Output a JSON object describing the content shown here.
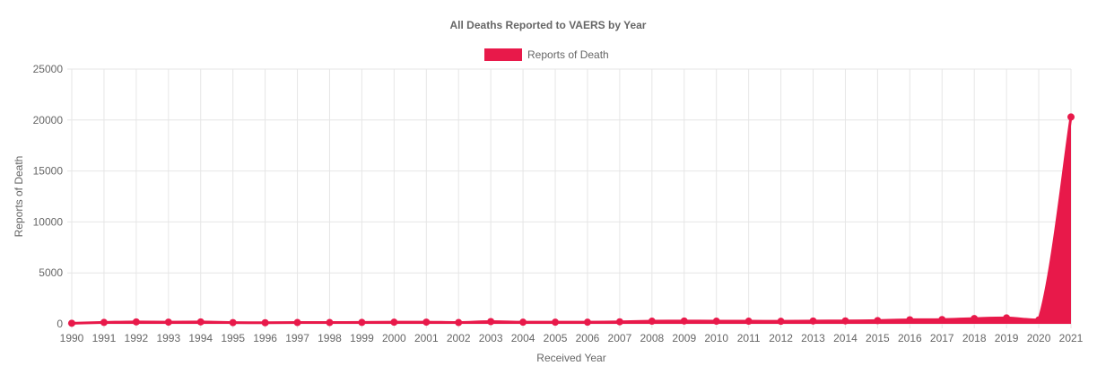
{
  "chart_data": {
    "type": "area",
    "title": "All Deaths Reported to VAERS by Year",
    "xlabel": "Received Year",
    "ylabel": "Reports of Death",
    "ylim": [
      0,
      25000
    ],
    "y_ticks": [
      "0",
      "5000",
      "10000",
      "15000",
      "20000",
      "25000"
    ],
    "grid": true,
    "legend_position": "top-center",
    "categories": [
      "1990",
      "1991",
      "1992",
      "1993",
      "1994",
      "1995",
      "1996",
      "1997",
      "1998",
      "1999",
      "2000",
      "2001",
      "2002",
      "2003",
      "2004",
      "2005",
      "2006",
      "2007",
      "2008",
      "2009",
      "2010",
      "2011",
      "2012",
      "2013",
      "2014",
      "2015",
      "2016",
      "2017",
      "2018",
      "2019",
      "2020",
      "2021"
    ],
    "series": [
      {
        "name": "Reports of Death",
        "color": "#e8194a",
        "values": [
          60,
          140,
          190,
          170,
          190,
          120,
          110,
          130,
          130,
          140,
          160,
          170,
          130,
          220,
          160,
          160,
          160,
          200,
          260,
          280,
          260,
          260,
          250,
          280,
          290,
          320,
          400,
          420,
          520,
          580,
          380,
          20300
        ]
      }
    ]
  }
}
